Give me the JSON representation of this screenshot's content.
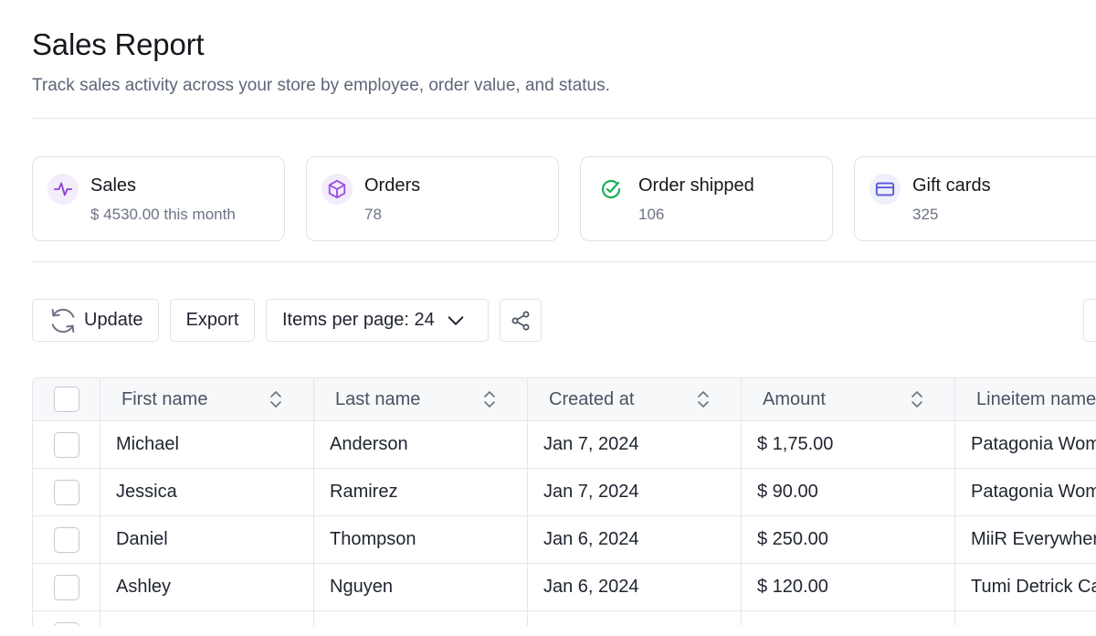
{
  "header": {
    "title": "Sales Report",
    "subtitle": "Track sales activity across your store by employee, order value, and status."
  },
  "stats": [
    {
      "title": "Sales",
      "value": "$ 4530.00 this month",
      "icon": "activity-icon",
      "icon_color": "#8b3fd9",
      "icon_bg": "#f3ecfb"
    },
    {
      "title": "Orders",
      "value": "78",
      "icon": "box-icon",
      "icon_color": "#9b4fe0",
      "icon_bg": "#f3ecfb"
    },
    {
      "title": "Order shipped",
      "value": "106",
      "icon": "check-circle-icon",
      "icon_color": "#1fae5b",
      "icon_bg": "#ffffff"
    },
    {
      "title": "Gift cards",
      "value": "325",
      "icon": "credit-card-icon",
      "icon_color": "#5b55d6",
      "icon_bg": "#eef0fb"
    }
  ],
  "toolbar": {
    "update_label": "Update",
    "export_label": "Export",
    "items_per_page_label": "Items per page: 24"
  },
  "table": {
    "columns": [
      "First name",
      "Last name",
      "Created at",
      "Amount",
      "Lineitem name"
    ],
    "rows": [
      [
        "Michael",
        "Anderson",
        "Jan 7, 2024",
        "$ 1,75.00",
        "Patagonia Women's"
      ],
      [
        "Jessica",
        "Ramirez",
        "Jan 7, 2024",
        "$ 90.00",
        "Patagonia Women's"
      ],
      [
        "Daniel",
        "Thompson",
        "Jan 6, 2024",
        "$ 250.00",
        "MiiR Everywhere"
      ],
      [
        "Ashley",
        "Nguyen",
        "Jan 6, 2024",
        "$ 120.00",
        "Tumi Detrick Carry"
      ]
    ]
  }
}
